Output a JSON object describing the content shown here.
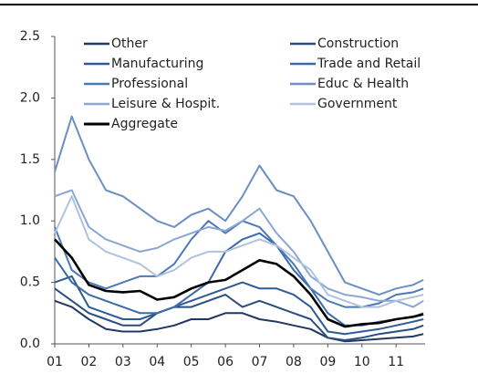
{
  "chart_data": {
    "type": "line",
    "x": [
      1,
      1.5,
      2,
      2.5,
      3,
      3.5,
      4,
      4.5,
      5,
      5.5,
      6,
      6.5,
      7,
      7.5,
      8,
      8.5,
      9,
      9.5,
      10,
      10.5,
      11,
      11.5,
      11.8
    ],
    "series": [
      {
        "name": "Other",
        "color": "#1f3864",
        "values": [
          0.35,
          0.3,
          0.2,
          0.12,
          0.1,
          0.1,
          0.12,
          0.15,
          0.2,
          0.2,
          0.25,
          0.25,
          0.2,
          0.18,
          0.15,
          0.12,
          0.05,
          0.02,
          0.03,
          0.04,
          0.05,
          0.06,
          0.08
        ]
      },
      {
        "name": "Construction",
        "color": "#2a4d80",
        "values": [
          0.45,
          0.35,
          0.25,
          0.2,
          0.15,
          0.15,
          0.25,
          0.3,
          0.3,
          0.35,
          0.4,
          0.3,
          0.35,
          0.3,
          0.25,
          0.2,
          0.05,
          0.03,
          0.05,
          0.08,
          0.1,
          0.12,
          0.15
        ]
      },
      {
        "name": "Manufacturing",
        "color": "#2e5b96",
        "values": [
          0.5,
          0.55,
          0.3,
          0.25,
          0.2,
          0.2,
          0.25,
          0.3,
          0.35,
          0.4,
          0.45,
          0.5,
          0.45,
          0.45,
          0.4,
          0.3,
          0.1,
          0.08,
          0.1,
          0.12,
          0.15,
          0.18,
          0.2
        ]
      },
      {
        "name": "Trade and Retail",
        "color": "#3a6aa8",
        "values": [
          0.7,
          0.5,
          0.4,
          0.35,
          0.3,
          0.25,
          0.25,
          0.3,
          0.4,
          0.5,
          0.75,
          0.85,
          0.9,
          0.8,
          0.6,
          0.45,
          0.25,
          0.15,
          0.15,
          0.18,
          0.2,
          0.22,
          0.25
        ]
      },
      {
        "name": "Professional",
        "color": "#4a7ab8",
        "values": [
          0.95,
          0.6,
          0.5,
          0.45,
          0.5,
          0.55,
          0.55,
          0.65,
          0.85,
          1.0,
          0.9,
          1.0,
          0.95,
          0.8,
          0.65,
          0.45,
          0.35,
          0.3,
          0.3,
          0.33,
          0.4,
          0.42,
          0.45
        ]
      },
      {
        "name": "Educ & Health",
        "color": "#6b8ec4",
        "values": [
          1.4,
          1.85,
          1.5,
          1.25,
          1.2,
          1.1,
          1.0,
          0.95,
          1.05,
          1.1,
          1.0,
          1.2,
          1.45,
          1.25,
          1.2,
          1.0,
          0.75,
          0.5,
          0.45,
          0.4,
          0.45,
          0.48,
          0.52
        ]
      },
      {
        "name": "Leisure & Hospit.",
        "color": "#8aa6d2",
        "values": [
          1.2,
          1.25,
          0.95,
          0.85,
          0.8,
          0.75,
          0.78,
          0.85,
          0.9,
          0.95,
          0.92,
          1.0,
          1.1,
          0.9,
          0.75,
          0.55,
          0.45,
          0.4,
          0.38,
          0.35,
          0.35,
          0.3,
          0.35
        ]
      },
      {
        "name": "Government",
        "color": "#b0c2e0",
        "values": [
          0.9,
          1.2,
          0.85,
          0.75,
          0.7,
          0.65,
          0.55,
          0.6,
          0.7,
          0.75,
          0.75,
          0.8,
          0.85,
          0.8,
          0.7,
          0.6,
          0.4,
          0.35,
          0.3,
          0.3,
          0.35,
          0.38,
          0.4
        ]
      },
      {
        "name": "Aggregate",
        "color": "#000000",
        "values": [
          0.85,
          0.7,
          0.48,
          0.43,
          0.42,
          0.43,
          0.36,
          0.38,
          0.45,
          0.5,
          0.52,
          0.6,
          0.68,
          0.65,
          0.55,
          0.4,
          0.2,
          0.14,
          0.16,
          0.17,
          0.2,
          0.22,
          0.24
        ]
      }
    ],
    "xlim": [
      1,
      11.85
    ],
    "xticks": [
      {
        "value": 1,
        "label": "01"
      },
      {
        "value": 2,
        "label": "02"
      },
      {
        "value": 3,
        "label": "03"
      },
      {
        "value": 4,
        "label": "04"
      },
      {
        "value": 5,
        "label": "05"
      },
      {
        "value": 6,
        "label": "06"
      },
      {
        "value": 7,
        "label": "07"
      },
      {
        "value": 8,
        "label": "08"
      },
      {
        "value": 9,
        "label": "09"
      },
      {
        "value": 10,
        "label": "10"
      },
      {
        "value": 11,
        "label": "11"
      }
    ],
    "ylim": [
      0,
      2.5
    ],
    "yticks": [
      {
        "value": 0,
        "label": "0.0"
      },
      0.5,
      {
        "value": 1,
        "label": "1.0"
      },
      1.5,
      {
        "value": 2,
        "label": "2.0"
      },
      2.5
    ],
    "grid": false
  }
}
